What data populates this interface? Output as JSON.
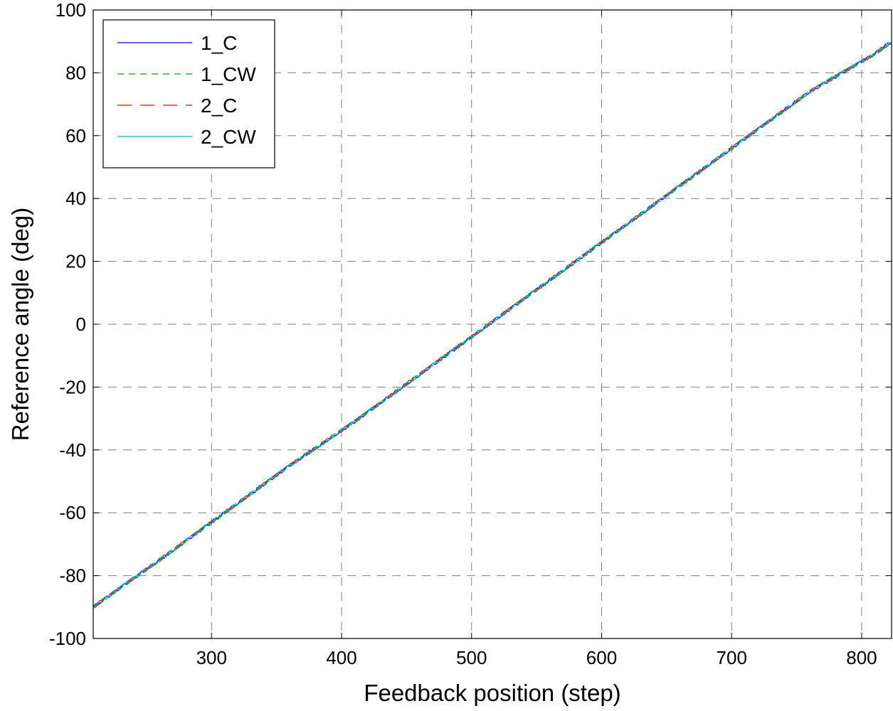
{
  "chart_data": {
    "type": "line",
    "title": "",
    "xlabel": "Feedback position (step)",
    "ylabel": "Reference angle (deg)",
    "xlim": [
      209,
      823
    ],
    "ylim": [
      -100,
      100
    ],
    "xticks": [
      300,
      400,
      500,
      600,
      700,
      800
    ],
    "yticks": [
      -100,
      -80,
      -60,
      -40,
      -20,
      0,
      20,
      40,
      60,
      80,
      100
    ],
    "grid": true,
    "grid_style": "dashed",
    "legend_position": "top-left",
    "series": [
      {
        "name": "1_C",
        "color": "#0000ff",
        "dash": "solid",
        "x": [
          209,
          260,
          310,
          360,
          410,
          460,
          510,
          560,
          610,
          660,
          710,
          760,
          810,
          823
        ],
        "y": [
          -90,
          -75,
          -60,
          -45,
          -31,
          -16,
          -1,
          14,
          29,
          44,
          59,
          74,
          86,
          90
        ]
      },
      {
        "name": "1_CW",
        "color": "#00aa00",
        "dash": "dashed",
        "x": [
          209,
          260,
          310,
          360,
          410,
          460,
          510,
          560,
          610,
          660,
          710,
          760,
          810,
          823
        ],
        "y": [
          -90,
          -75,
          -60,
          -45,
          -31,
          -16,
          -1,
          14,
          29,
          44,
          59,
          74,
          86,
          90
        ]
      },
      {
        "name": "2_C",
        "color": "#ff0000",
        "dash": "long-dashed",
        "x": [
          209,
          260,
          310,
          360,
          410,
          460,
          510,
          560,
          610,
          660,
          710,
          760,
          810,
          823
        ],
        "y": [
          -90,
          -75,
          -60,
          -45,
          -31,
          -16,
          -1,
          14,
          29,
          44,
          59,
          74,
          86,
          90
        ]
      },
      {
        "name": "2_CW",
        "color": "#00bfbf",
        "dash": "solid",
        "x": [
          209,
          260,
          310,
          360,
          410,
          460,
          510,
          560,
          610,
          660,
          710,
          760,
          810,
          823
        ],
        "y": [
          -90,
          -75,
          -60,
          -45,
          -31,
          -16,
          -1,
          14,
          29,
          44,
          59,
          74,
          86,
          90
        ]
      }
    ]
  }
}
